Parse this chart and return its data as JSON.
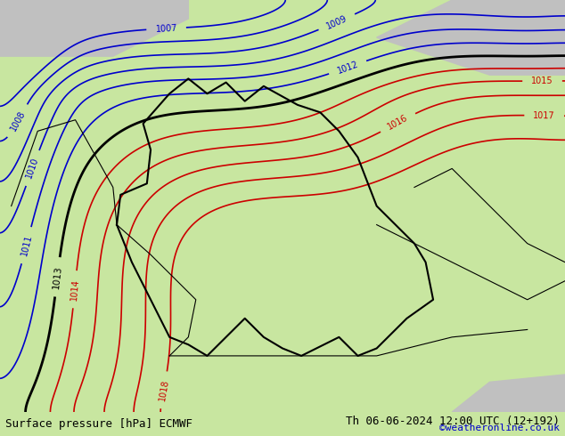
{
  "title_left": "Surface pressure [hPa] ECMWF",
  "title_right": "Th 06-06-2024 12:00 UTC (12+192)",
  "credit": "©weatheronline.co.uk",
  "background_color": "#c8e6a0",
  "land_color": "#c8e6a0",
  "sea_color": "#d3d3d3",
  "blue_contour_color": "#0000cc",
  "red_contour_color": "#cc0000",
  "black_contour_color": "#000000",
  "blue_levels": [
    1007,
    1008,
    1009,
    1010,
    1011,
    1012
  ],
  "red_levels": [
    1013,
    1014,
    1015,
    1016,
    1017,
    1018
  ],
  "black_level": 1013,
  "bottom_bar_color": "#c8e6a0",
  "font_size_bottom": 9,
  "font_size_credit": 8
}
